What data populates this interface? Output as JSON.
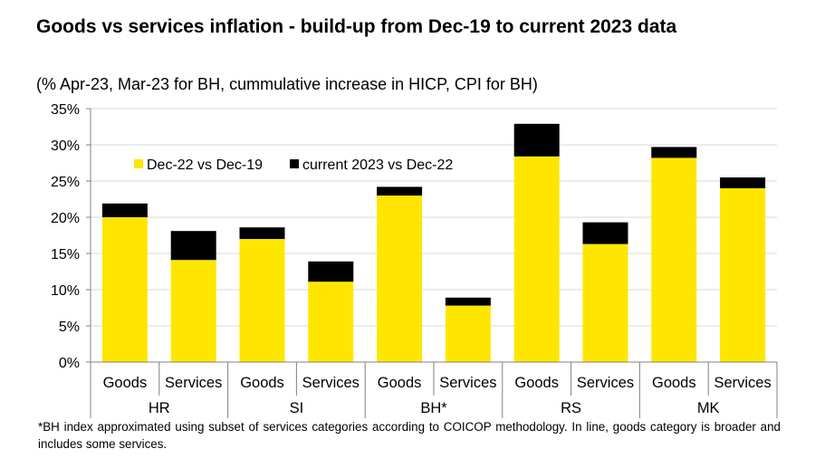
{
  "header": {
    "title": "Goods vs services inflation - build-up from Dec-19 to current 2023 data",
    "subtitle": "(% Apr-23, Mar-23 for BH, cummulative increase in HICP, CPI for BH)"
  },
  "footnote": "*BH index approximated using subset of services categories according to COICOP methodology. In line, goods category is broader and includes some services.",
  "colors": {
    "dec22": "#FFE600",
    "current2023": "#000000",
    "grid": "#d9d9d9",
    "axis": "#808080"
  },
  "chart_data": {
    "type": "bar",
    "stacked": true,
    "categories": [
      "Goods",
      "Services",
      "Goods",
      "Services",
      "Goods",
      "Services",
      "Goods",
      "Services",
      "Goods",
      "Services"
    ],
    "groups": [
      {
        "label": "HR",
        "span": 2
      },
      {
        "label": "SI",
        "span": 2
      },
      {
        "label": "BH*",
        "span": 2
      },
      {
        "label": "RS",
        "span": 2
      },
      {
        "label": "MK",
        "span": 2
      }
    ],
    "series": [
      {
        "name": "Dec-22 vs Dec-19",
        "color": "#FFE600",
        "values": [
          20.0,
          14.1,
          17.0,
          11.1,
          23.0,
          7.8,
          28.4,
          16.3,
          28.2,
          24.0
        ]
      },
      {
        "name": "current 2023 vs Dec-22",
        "color": "#000000",
        "values": [
          1.9,
          4.0,
          1.6,
          2.8,
          1.2,
          1.1,
          4.5,
          3.0,
          1.5,
          1.5
        ]
      }
    ],
    "ylim": [
      0,
      35
    ],
    "yticks": [
      0,
      5,
      10,
      15,
      20,
      25,
      30,
      35
    ],
    "ytick_labels": [
      "0%",
      "5%",
      "10%",
      "15%",
      "20%",
      "25%",
      "30%",
      "35%"
    ],
    "grid": true,
    "legend": "top-left"
  }
}
